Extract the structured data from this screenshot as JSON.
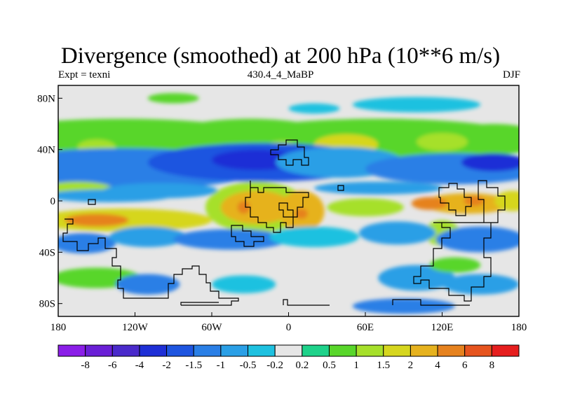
{
  "title": "Divergence (smoothed) at 200 hPa (10**6 m/s)",
  "subtitle_left": "Expt = texni",
  "subtitle_center": "430.4_4_MaBP",
  "subtitle_right": "DJF",
  "map": {
    "projection": "cylindrical equidistant",
    "lon_range": [
      -180,
      180
    ],
    "lat_range": [
      -90,
      90
    ],
    "background_color": "#e6e6e6",
    "coastline_color": "#000000",
    "x_ticks": [
      {
        "lon": -180,
        "label": "180"
      },
      {
        "lon": -120,
        "label": "120W"
      },
      {
        "lon": -60,
        "label": "60W"
      },
      {
        "lon": 0,
        "label": "0"
      },
      {
        "lon": 60,
        "label": "60E"
      },
      {
        "lon": 120,
        "label": "120E"
      },
      {
        "lon": 180,
        "label": "180"
      }
    ],
    "y_ticks": [
      {
        "lat": 80,
        "label": "80N"
      },
      {
        "lat": 40,
        "label": "40N"
      },
      {
        "lat": 0,
        "label": "0"
      },
      {
        "lat": -40,
        "label": "40S"
      },
      {
        "lat": -80,
        "label": "80S"
      }
    ]
  },
  "colorbar": {
    "colors": [
      "#8b1ee8",
      "#6a1fd6",
      "#4a2acb",
      "#1e2fd6",
      "#1e55e0",
      "#2a7fe6",
      "#2a9fe6",
      "#1ec1e0",
      "#e6e6e6",
      "#1ed28a",
      "#58d62a",
      "#a6e02a",
      "#d6d61e",
      "#e6b21e",
      "#e6821e",
      "#e6541e",
      "#e61e1e"
    ],
    "labels": [
      "-8",
      "-6",
      "-4",
      "-2",
      "-1.5",
      "-1",
      "-0.5",
      "-0.2",
      "0.2",
      "0.5",
      "1",
      "1.5",
      "2",
      "4",
      "6",
      "8"
    ]
  },
  "chart_data": {
    "type": "heatmap",
    "title": "Divergence (smoothed) at 200 hPa (10**6 m/s)",
    "variable": "Divergence (smoothed)",
    "level": "200 hPa",
    "units": "10**6 m/s",
    "season": "DJF",
    "experiment": "texni",
    "case": "430.4_4_MaBP",
    "contour_levels": [
      -8,
      -6,
      -4,
      -2,
      -1.5,
      -1,
      -0.5,
      -0.2,
      0.2,
      0.5,
      1,
      1.5,
      2,
      4,
      6,
      8
    ],
    "x_range": [
      -180,
      180
    ],
    "y_range": [
      -90,
      90
    ],
    "features": [
      {
        "lon": -130,
        "lat": 50,
        "w": 110,
        "h": 14,
        "value": 0.9
      },
      {
        "lon": -30,
        "lat": 52,
        "w": 60,
        "h": 12,
        "value": 0.8
      },
      {
        "lon": 70,
        "lat": 48,
        "w": 120,
        "h": 16,
        "value": 0.9
      },
      {
        "lon": 160,
        "lat": 48,
        "w": 40,
        "h": 12,
        "value": 0.8
      },
      {
        "lon": 45,
        "lat": 44,
        "w": 25,
        "h": 8,
        "value": 1.6
      },
      {
        "lon": 120,
        "lat": 46,
        "w": 20,
        "h": 7,
        "value": 1.4
      },
      {
        "lon": -150,
        "lat": 42,
        "w": 15,
        "h": 6,
        "value": 1.2
      },
      {
        "lon": -5,
        "lat": 42,
        "w": 12,
        "h": 5,
        "value": 1.1
      },
      {
        "lon": -130,
        "lat": 25,
        "w": 110,
        "h": 16,
        "value": -1.2
      },
      {
        "lon": -20,
        "lat": 30,
        "w": 90,
        "h": 15,
        "value": -1.6
      },
      {
        "lon": -25,
        "lat": 32,
        "w": 35,
        "h": 8,
        "value": -2.5
      },
      {
        "lon": 40,
        "lat": 30,
        "w": 50,
        "h": 12,
        "value": -1.0
      },
      {
        "lon": 130,
        "lat": 25,
        "w": 70,
        "h": 12,
        "value": -1.5
      },
      {
        "lon": 160,
        "lat": 30,
        "w": 25,
        "h": 7,
        "value": -2.5
      },
      {
        "lon": -165,
        "lat": 8,
        "w": 30,
        "h": 7,
        "value": 1.4
      },
      {
        "lon": -140,
        "lat": 4,
        "w": 50,
        "h": 5,
        "value": -1.0
      },
      {
        "lon": -100,
        "lat": 8,
        "w": 45,
        "h": 6,
        "value": -0.7
      },
      {
        "lon": 70,
        "lat": 10,
        "w": 50,
        "h": 5,
        "value": -0.7
      },
      {
        "lon": -130,
        "lat": -15,
        "w": 70,
        "h": 9,
        "value": 1.8
      },
      {
        "lon": -150,
        "lat": -15,
        "w": 25,
        "h": 5,
        "value": 4.5
      },
      {
        "lon": -25,
        "lat": -5,
        "w": 40,
        "h": 20,
        "value": 1.4
      },
      {
        "lon": 10,
        "lat": -8,
        "w": 18,
        "h": 16,
        "value": 2.3
      },
      {
        "lon": -25,
        "lat": -5,
        "w": 28,
        "h": 13,
        "value": 2.6
      },
      {
        "lon": -35,
        "lat": -5,
        "w": 5,
        "h": 5,
        "value": 4.5
      },
      {
        "lon": 10,
        "lat": -10,
        "w": 5,
        "h": 4,
        "value": 4.5
      },
      {
        "lon": 60,
        "lat": -5,
        "w": 30,
        "h": 7,
        "value": 1.2
      },
      {
        "lon": 140,
        "lat": -2,
        "w": 35,
        "h": 8,
        "value": 2.4
      },
      {
        "lon": 110,
        "lat": -2,
        "w": 14,
        "h": 5,
        "value": 4.5
      },
      {
        "lon": 145,
        "lat": 0,
        "w": 8,
        "h": 4,
        "value": 4.5
      },
      {
        "lon": 175,
        "lat": 0,
        "w": 14,
        "h": 8,
        "value": 1.8
      },
      {
        "lon": 120,
        "lat": -25,
        "w": 14,
        "h": 10,
        "value": 1.4
      },
      {
        "lon": -160,
        "lat": -33,
        "w": 25,
        "h": 8,
        "value": -1.2
      },
      {
        "lon": -110,
        "lat": -28,
        "w": 30,
        "h": 8,
        "value": -0.6
      },
      {
        "lon": -45,
        "lat": -30,
        "w": 45,
        "h": 8,
        "value": -1.2
      },
      {
        "lon": 20,
        "lat": -28,
        "w": 35,
        "h": 8,
        "value": -0.5
      },
      {
        "lon": 85,
        "lat": -25,
        "w": 30,
        "h": 9,
        "value": -0.6
      },
      {
        "lon": 150,
        "lat": -30,
        "w": 35,
        "h": 10,
        "value": -1.2
      },
      {
        "lon": -150,
        "lat": -60,
        "w": 35,
        "h": 8,
        "value": 0.8
      },
      {
        "lon": -110,
        "lat": -65,
        "w": 25,
        "h": 8,
        "value": -1.2
      },
      {
        "lon": -35,
        "lat": -65,
        "w": 25,
        "h": 7,
        "value": -0.5
      },
      {
        "lon": 100,
        "lat": -60,
        "w": 30,
        "h": 10,
        "value": -0.6
      },
      {
        "lon": 150,
        "lat": -65,
        "w": 30,
        "h": 8,
        "value": -0.6
      },
      {
        "lon": 90,
        "lat": -82,
        "w": 40,
        "h": 6,
        "value": -1.2
      },
      {
        "lon": 130,
        "lat": -50,
        "w": 20,
        "h": 6,
        "value": 0.8
      },
      {
        "lon": -90,
        "lat": 80,
        "w": 20,
        "h": 4,
        "value": 0.6
      },
      {
        "lon": 100,
        "lat": 75,
        "w": 50,
        "h": 6,
        "value": -0.5
      },
      {
        "lon": 20,
        "lat": 72,
        "w": 20,
        "h": 4,
        "value": -0.5
      }
    ]
  }
}
